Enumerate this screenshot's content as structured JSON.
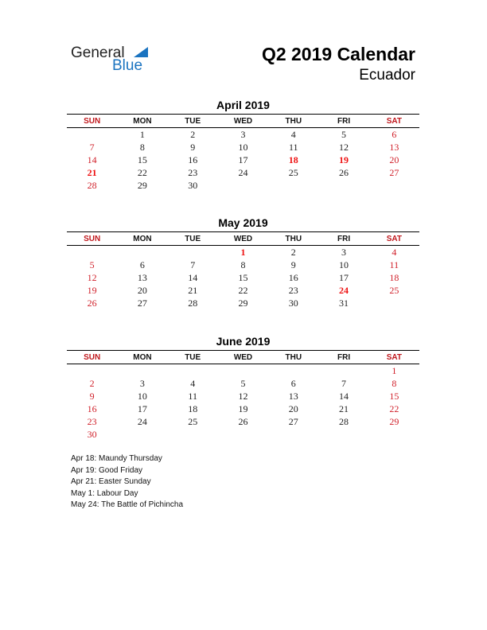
{
  "logo": {
    "general": "General",
    "blue": "Blue"
  },
  "header": {
    "title": "Q2 2019 Calendar",
    "country": "Ecuador"
  },
  "weekdays": [
    "SUN",
    "MON",
    "TUE",
    "WED",
    "THU",
    "FRI",
    "SAT"
  ],
  "colors": {
    "weekend": "#d0202a",
    "holiday": "#ee1111",
    "brand": "#1a73c0"
  },
  "months": [
    {
      "title": "April 2019",
      "weeks": [
        [
          "",
          "1",
          "2",
          "3",
          "4",
          "5",
          "6"
        ],
        [
          "7",
          "8",
          "9",
          "10",
          "11",
          "12",
          "13"
        ],
        [
          "14",
          "15",
          "16",
          "17",
          "18",
          "19",
          "20"
        ],
        [
          "21",
          "22",
          "23",
          "24",
          "25",
          "26",
          "27"
        ],
        [
          "28",
          "29",
          "30",
          "",
          "",
          "",
          ""
        ]
      ],
      "holidays": [
        "18",
        "19",
        "21"
      ]
    },
    {
      "title": "May 2019",
      "weeks": [
        [
          "",
          "",
          "",
          "1",
          "2",
          "3",
          "4"
        ],
        [
          "5",
          "6",
          "7",
          "8",
          "9",
          "10",
          "11"
        ],
        [
          "12",
          "13",
          "14",
          "15",
          "16",
          "17",
          "18"
        ],
        [
          "19",
          "20",
          "21",
          "22",
          "23",
          "24",
          "25"
        ],
        [
          "26",
          "27",
          "28",
          "29",
          "30",
          "31",
          ""
        ]
      ],
      "holidays": [
        "1",
        "24"
      ]
    },
    {
      "title": "June 2019",
      "weeks": [
        [
          "",
          "",
          "",
          "",
          "",
          "",
          "1"
        ],
        [
          "2",
          "3",
          "4",
          "5",
          "6",
          "7",
          "8"
        ],
        [
          "9",
          "10",
          "11",
          "12",
          "13",
          "14",
          "15"
        ],
        [
          "16",
          "17",
          "18",
          "19",
          "20",
          "21",
          "22"
        ],
        [
          "23",
          "24",
          "25",
          "26",
          "27",
          "28",
          "29"
        ],
        [
          "30",
          "",
          "",
          "",
          "",
          "",
          ""
        ]
      ],
      "holidays": []
    }
  ],
  "holiday_notes": [
    "Apr 18: Maundy Thursday",
    "Apr 19: Good Friday",
    "Apr 21: Easter Sunday",
    "May 1: Labour Day",
    "May 24: The Battle of Pichincha"
  ]
}
